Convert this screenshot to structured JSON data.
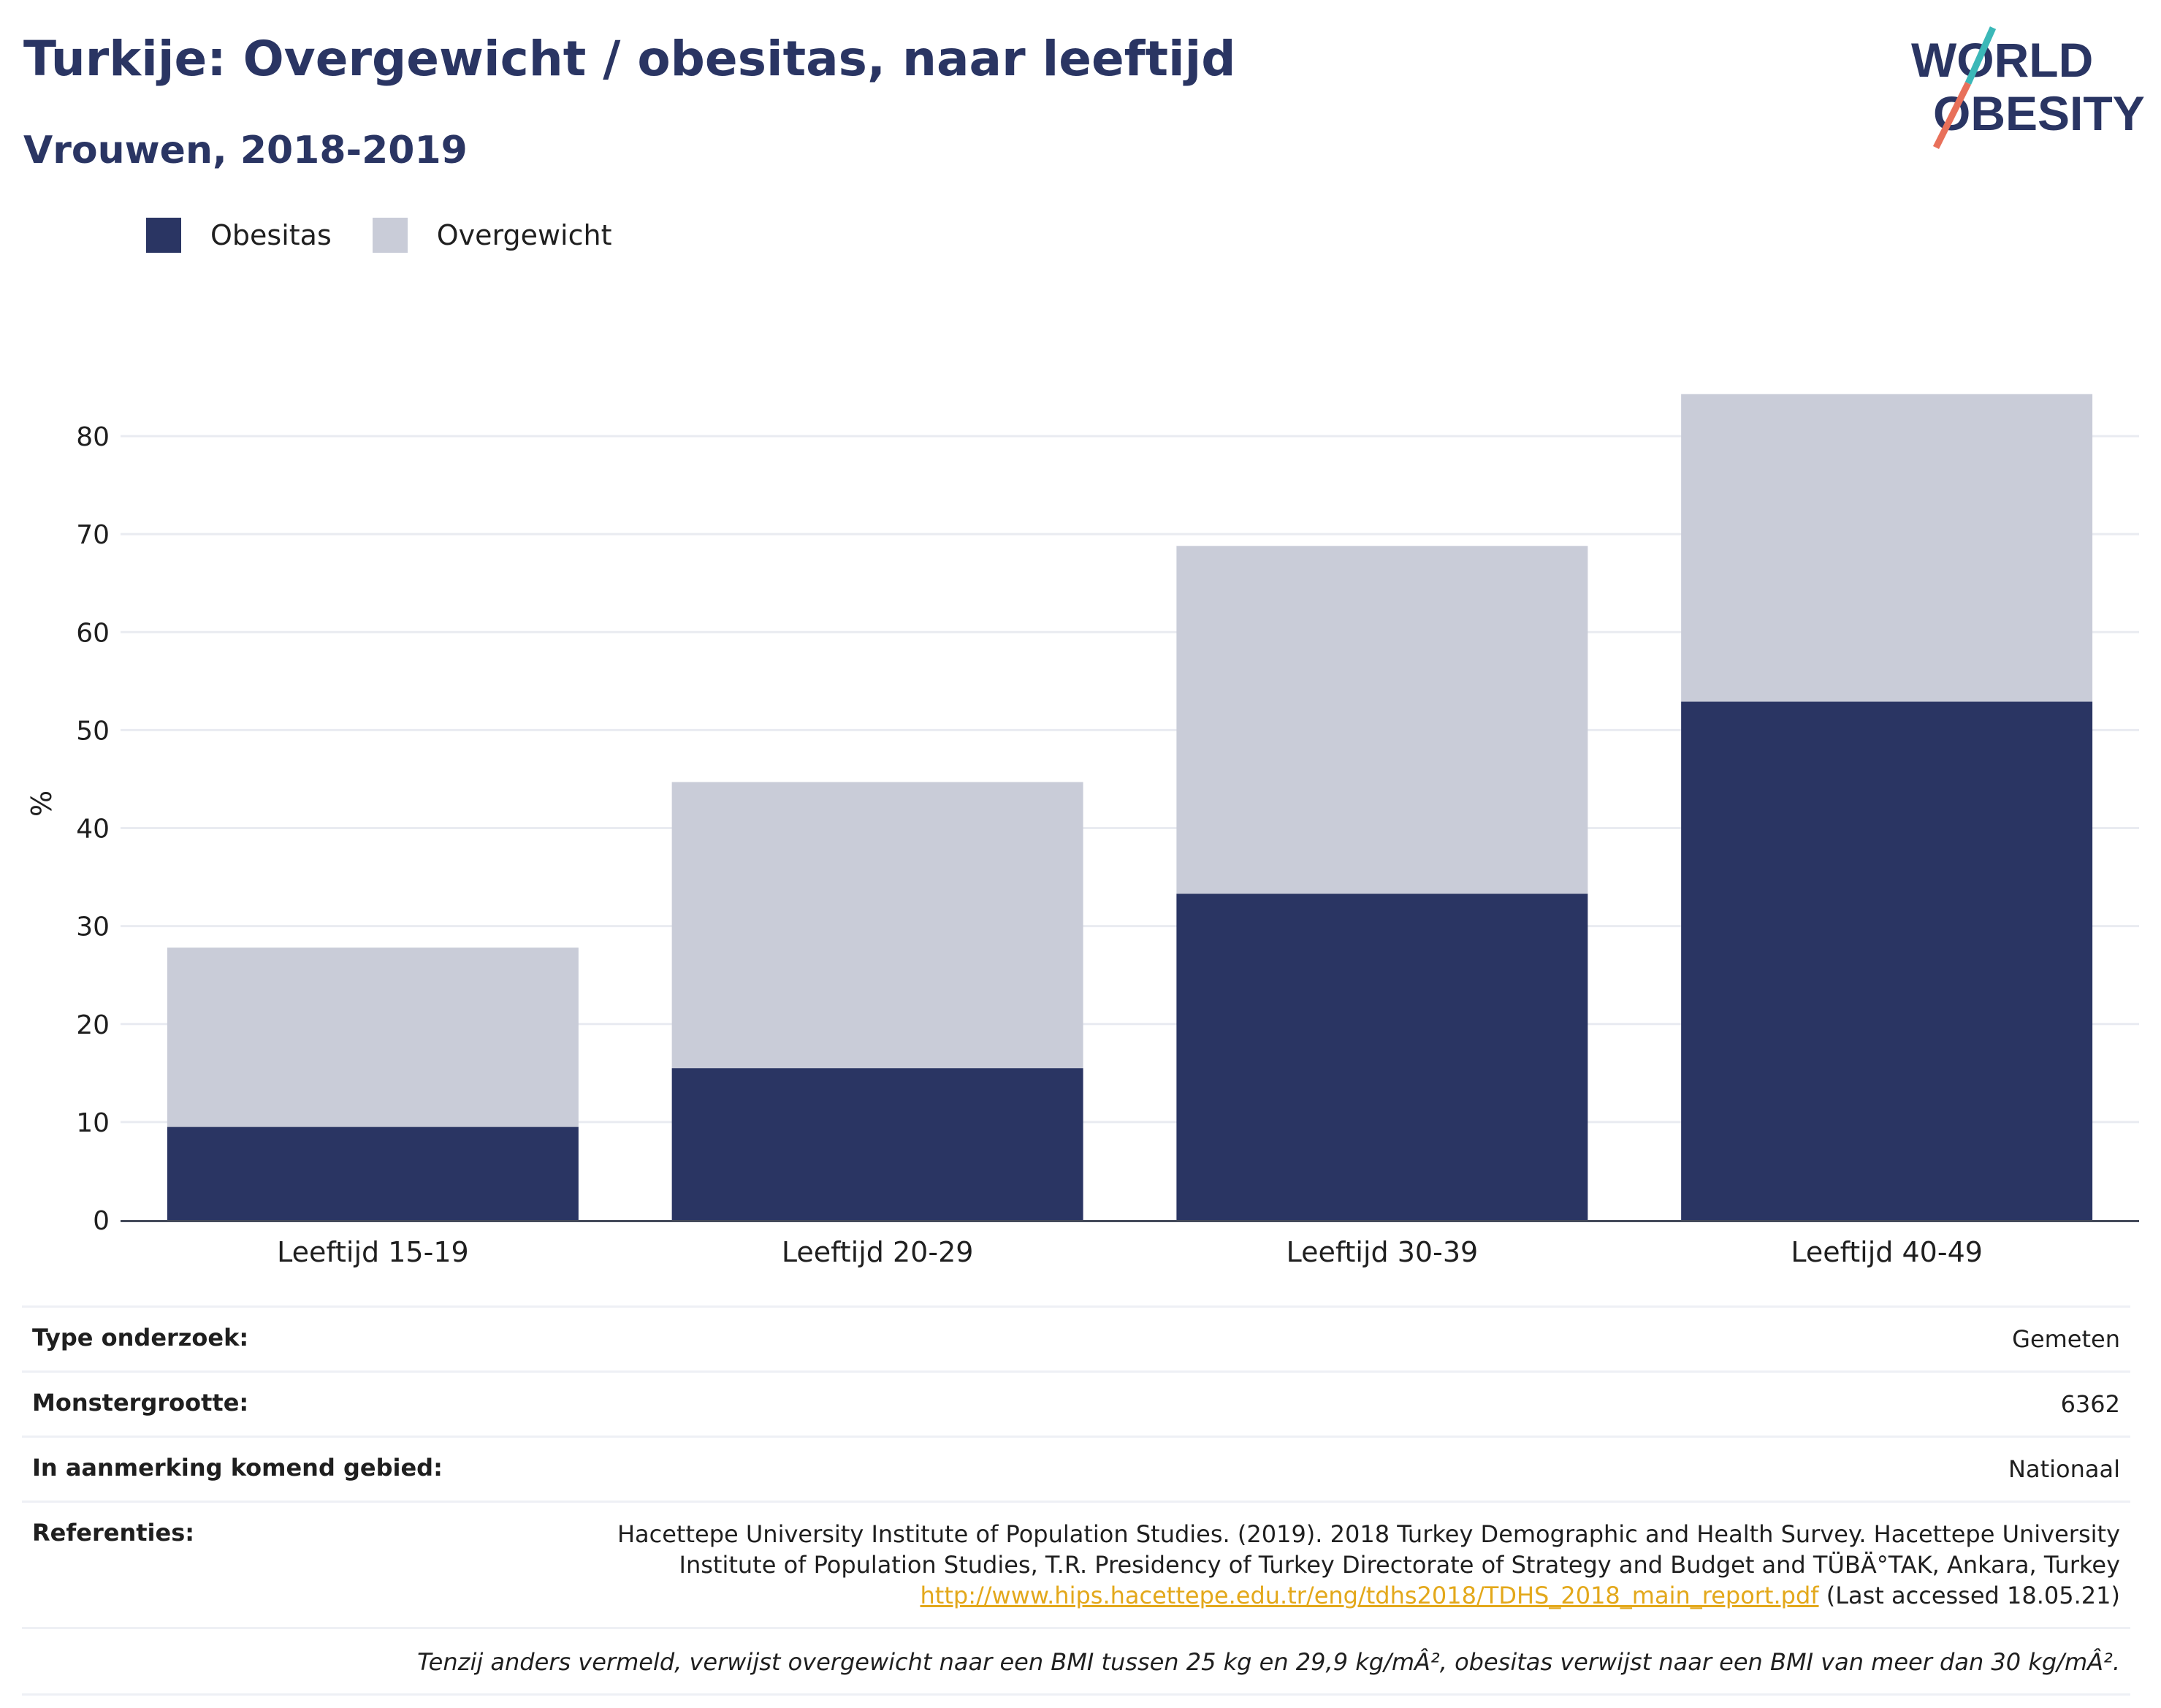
{
  "header": {
    "title": "Turkije: Overgewicht / obesitas, naar leeftijd",
    "subtitle": "Vrouwen, 2018-2019",
    "logo_line1": "WORLD",
    "logo_line2": "OBESITY"
  },
  "legend": [
    {
      "label": "Obesitas",
      "color": "#2a3563"
    },
    {
      "label": "Overgewicht",
      "color": "#c9ccd8"
    }
  ],
  "chart_data": {
    "type": "bar",
    "stacked": true,
    "categories": [
      "Leeftijd 15-19",
      "Leeftijd 20-29",
      "Leeftijd 30-39",
      "Leeftijd 40-49"
    ],
    "series": [
      {
        "name": "Obesitas",
        "color": "#2a3563",
        "values": [
          9.5,
          15.5,
          33.3,
          52.9
        ]
      },
      {
        "name": "Overgewicht",
        "color": "#c9ccd8",
        "values": [
          18.3,
          29.2,
          35.5,
          31.4
        ]
      }
    ],
    "ylabel": "%",
    "ylim": [
      0,
      85
    ],
    "yticks": [
      0,
      10,
      20,
      30,
      40,
      50,
      60,
      70,
      80
    ],
    "grid": true,
    "legend_position": "top-left"
  },
  "info": {
    "survey_type_label": "Type onderzoek:",
    "survey_type_value": "Gemeten",
    "sample_size_label": "Monstergrootte:",
    "sample_size_value": "6362",
    "area_label": "In aanmerking komend gebied:",
    "area_value": "Nationaal",
    "references_label": "Referenties:",
    "references_text_1": "Hacettepe University Institute of Population Studies. (2019). 2018 Turkey Demographic and Health Survey. Hacettepe University Institute of Population Studies, T.R. Presidency of Turkey Directorate of Strategy and Budget and TÜBÄ°TAK, Ankara, Turkey",
    "references_link": "http://www.hips.hacettepe.edu.tr/eng/tdhs2018/TDHS_2018_main_report.pdf",
    "references_text_2": " (Last accessed 18.05.21)",
    "note": "Tenzij anders vermeld, verwijst overgewicht naar een BMI tussen 25 kg en 29,9 kg/mÂ², obesitas verwijst naar een BMI van meer dan 30 kg/mÂ²."
  }
}
